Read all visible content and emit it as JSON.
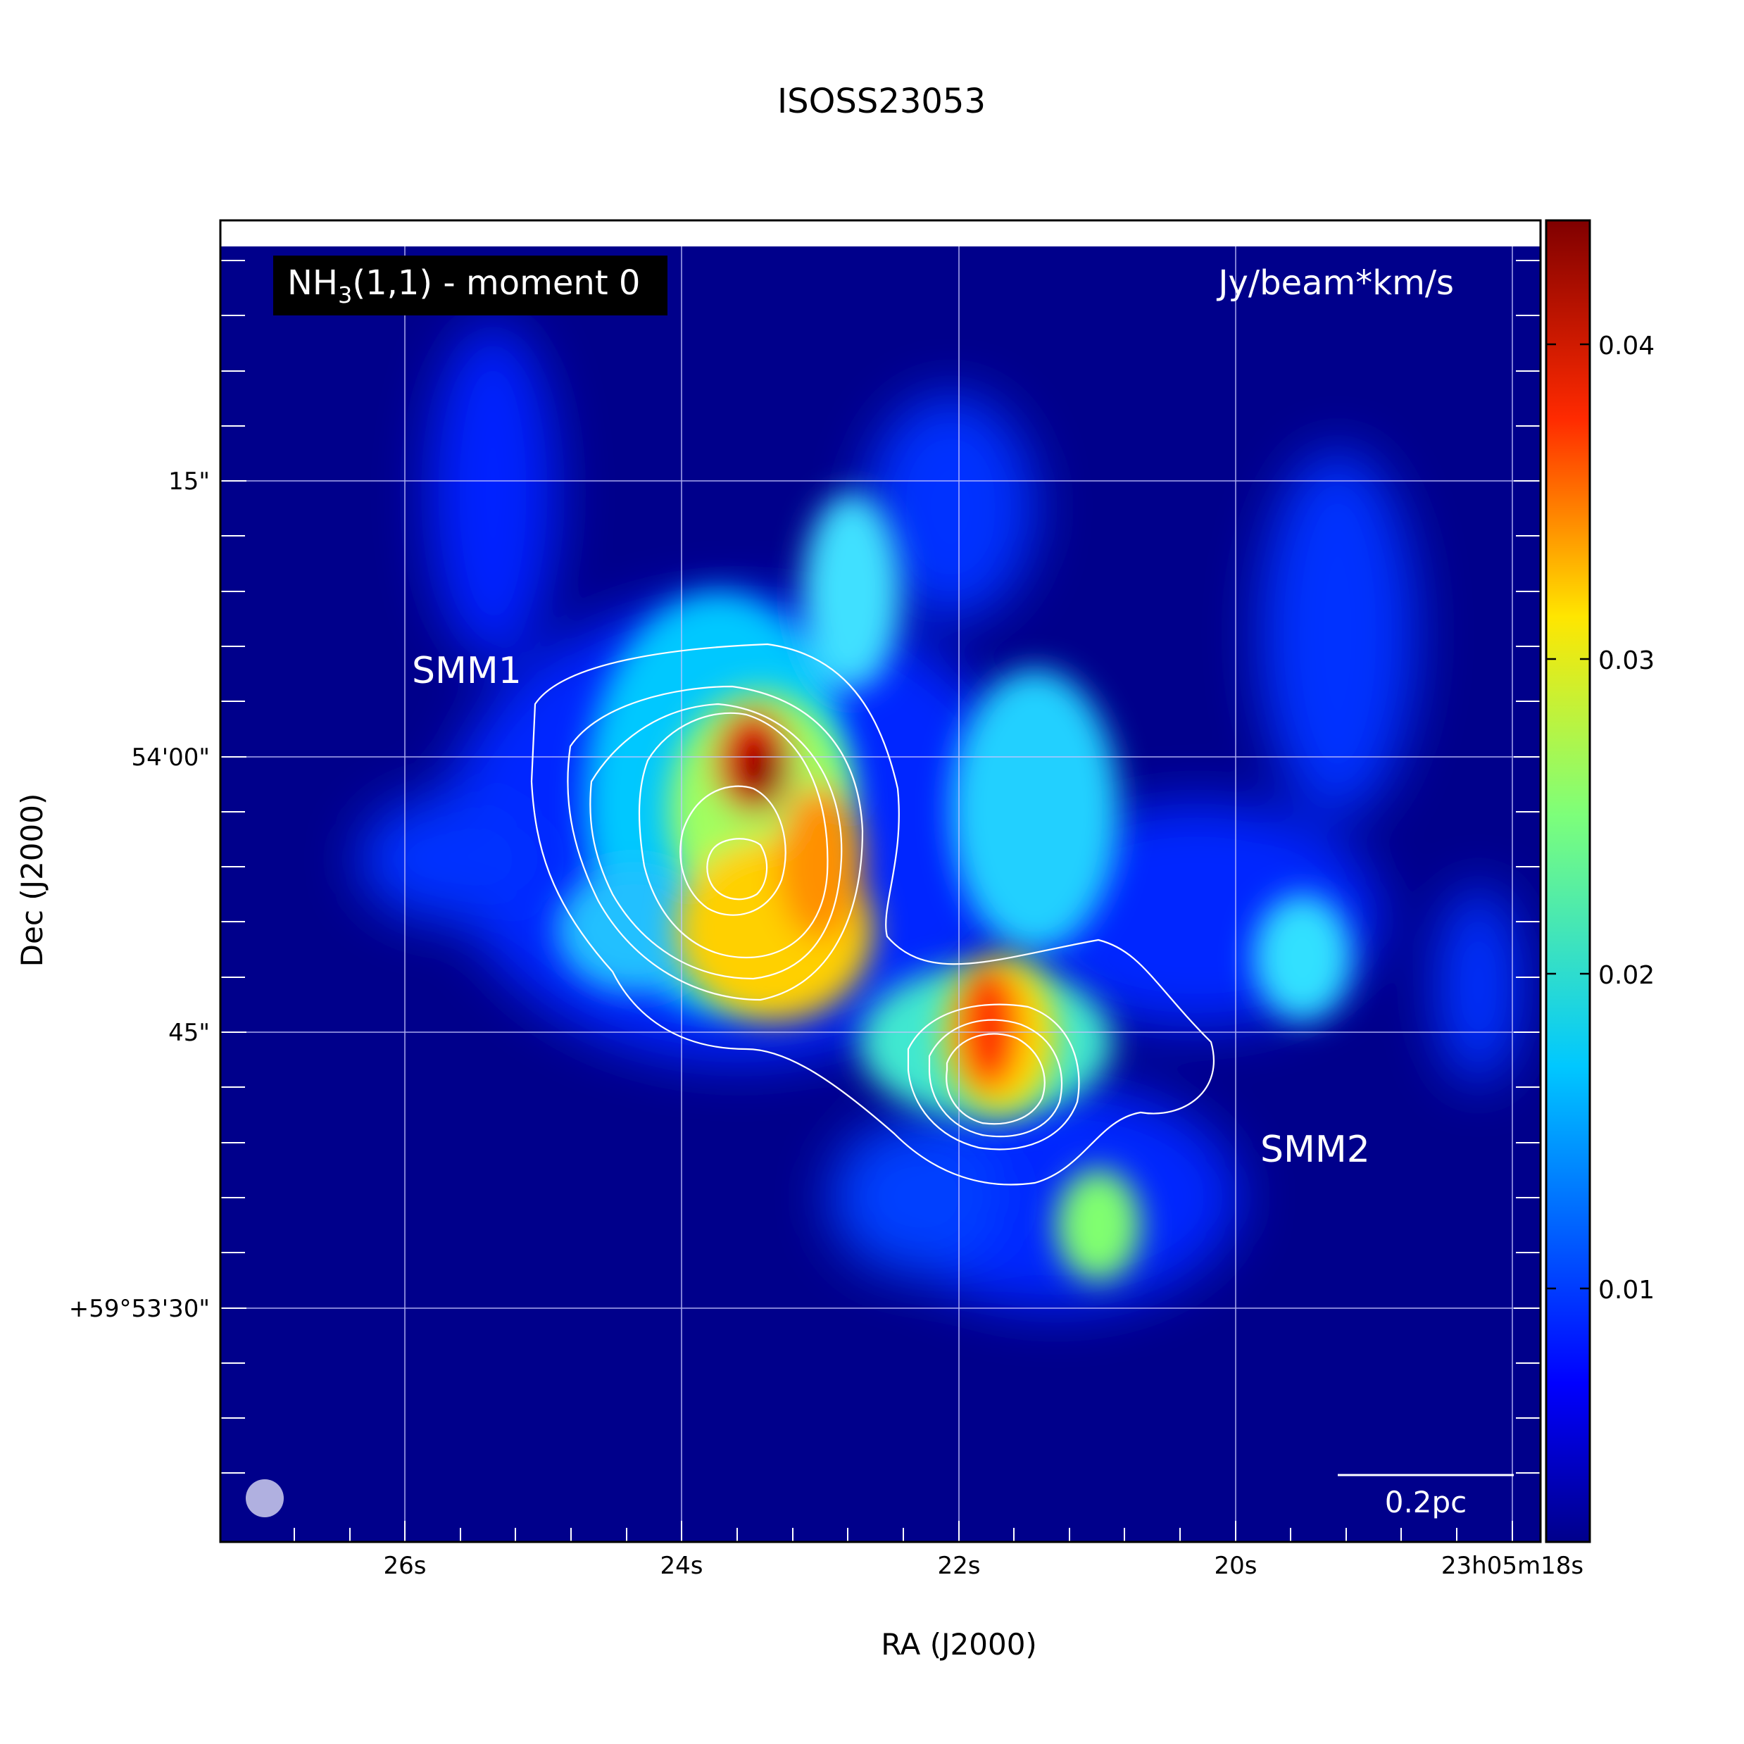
{
  "title": "ISOSS23053",
  "xlabel": "RA (J2000)",
  "ylabel": "Dec (J2000)",
  "panel_label_prefix": "NH",
  "panel_label_sub": "3",
  "panel_label_suffix": "(1,1) - moment 0",
  "colorbar_unit": "Jy/beam*km/s",
  "colorbar_ticks": [
    "0.01",
    "0.02",
    "0.03",
    "0.04"
  ],
  "colorbar_range": [
    0.002,
    0.044
  ],
  "x_ticks": [
    "26s",
    "24s",
    "22s",
    "20s",
    "23h05m18s"
  ],
  "y_ticks": [
    "15\"",
    "54'00\"",
    "45\"",
    "+59°53'30\""
  ],
  "source_labels": [
    "SMM1",
    "SMM2"
  ],
  "scalebar_label": "0.2pc",
  "colors": {
    "background": "#00008b",
    "contour": "#ffffff",
    "grid": "#c8c8ff"
  }
}
